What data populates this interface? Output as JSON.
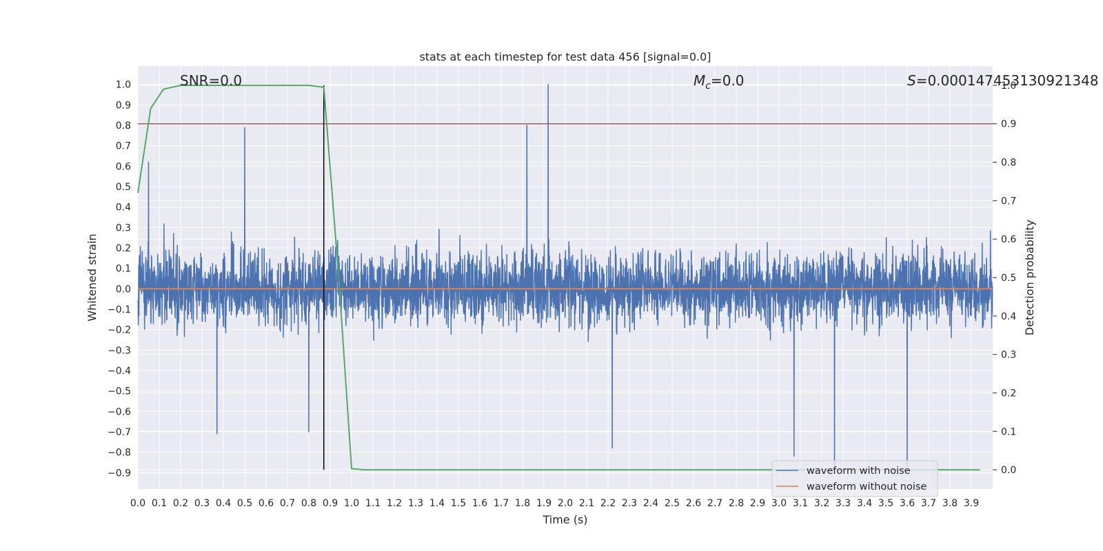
{
  "chart_data": {
    "type": "line",
    "title": "stats at each timestep for test data 456 [signal=0.0]",
    "xlabel": "Time (s)",
    "ylabel": "Whitened strain",
    "y2label": "Detection probability",
    "xlim": [
      0.0,
      4.0
    ],
    "ylim": [
      -0.98,
      1.09
    ],
    "y2lim": [
      -0.05,
      1.05
    ],
    "xticks": [
      "0.0",
      "0.1",
      "0.2",
      "0.3",
      "0.4",
      "0.5",
      "0.6",
      "0.7",
      "0.8",
      "0.9",
      "1.0",
      "1.1",
      "1.2",
      "1.3",
      "1.4",
      "1.5",
      "1.6",
      "1.7",
      "1.8",
      "1.9",
      "2.0",
      "2.1",
      "2.2",
      "2.3",
      "2.4",
      "2.5",
      "2.6",
      "2.7",
      "2.8",
      "2.9",
      "3.0",
      "3.1",
      "3.2",
      "3.3",
      "3.4",
      "3.5",
      "3.6",
      "3.7",
      "3.8",
      "3.9"
    ],
    "yticks": [
      "1.0",
      "0.9",
      "0.8",
      "0.7",
      "0.6",
      "0.5",
      "0.4",
      "0.3",
      "0.2",
      "0.1",
      "0.0",
      "−0.1",
      "−0.2",
      "−0.3",
      "−0.4",
      "−0.5",
      "−0.6",
      "−0.7",
      "−0.8",
      "−0.9"
    ],
    "y2ticks": [
      "1.0",
      "0.9",
      "0.8",
      "0.7",
      "0.6",
      "0.5",
      "0.4",
      "0.3",
      "0.2",
      "0.1",
      "0.0"
    ],
    "annotations": {
      "snr": "SNR=0.0",
      "mc_symbol": "M",
      "mc_sub": "c",
      "mc_value": "=0.0",
      "s_symbol": "S",
      "s_value": "=0.000147453130921348"
    },
    "legend": {
      "position": "lower-right",
      "entries": [
        "waveform with noise",
        "waveform without noise"
      ]
    },
    "colors": {
      "noise": "#4c72b0",
      "clean": "#dd8452",
      "prob": "#55a868",
      "threshold": "#c44e52",
      "marker": "#000000",
      "bg": "#eaeaf2",
      "grid": "#ffffff"
    },
    "series": [
      {
        "name": "waveform with noise",
        "axis": "left",
        "kind": "noise",
        "n_samples": 4096,
        "seed": 456,
        "typical_max": 0.4,
        "typical_min": -0.4,
        "spikes": [
          [
            1.92,
            1.0
          ],
          [
            0.5,
            0.79
          ],
          [
            1.82,
            0.8
          ],
          [
            0.05,
            0.62
          ],
          [
            3.26,
            -0.88
          ],
          [
            3.6,
            -0.87
          ],
          [
            3.07,
            -0.82
          ],
          [
            0.8,
            -0.7
          ],
          [
            0.37,
            -0.71
          ],
          [
            2.22,
            -0.78
          ]
        ]
      },
      {
        "name": "waveform without noise",
        "axis": "left",
        "x": [
          0.0,
          4.0
        ],
        "y": [
          0.0,
          0.0
        ]
      },
      {
        "name": "detection probability",
        "axis": "right",
        "x": [
          0.0,
          0.06,
          0.12,
          0.2,
          0.3,
          0.5,
          0.8,
          0.87,
          0.94,
          1.0,
          1.06,
          2.0,
          3.0,
          3.94
        ],
        "y": [
          0.72,
          0.94,
          0.99,
          1.0,
          1.0,
          1.0,
          1.0,
          0.995,
          0.5,
          0.003,
          0.0,
          0.0,
          0.0,
          0.0
        ]
      }
    ],
    "threshold_line": {
      "axis": "right",
      "y": 0.9
    },
    "marker_line": {
      "x": 0.87
    }
  }
}
